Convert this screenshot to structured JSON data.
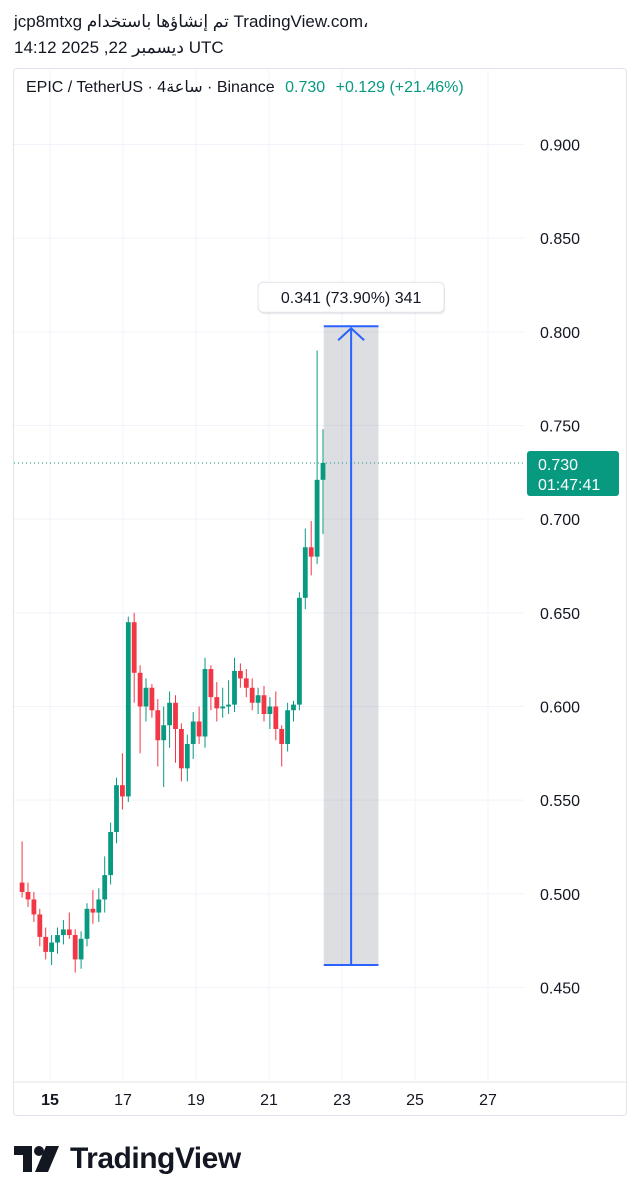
{
  "header": {
    "line1": "jcp8mtxg تم إنشاؤها باستخدام TradingView.com،",
    "line2": "14:12 2025 ,22 ديسمبر UTC"
  },
  "legend": {
    "symbol": "EPIC / TetherUS · 4ساعة · Binance",
    "last": "0.730",
    "change": "+0.129 (+21.46%)"
  },
  "price_tag": {
    "price": "0.730",
    "countdown": "01:47:41"
  },
  "measure": {
    "label": "0.341 (73.90%) 341"
  },
  "brand": {
    "name": "TradingView"
  },
  "colors": {
    "up": "#089981",
    "down": "#f23645",
    "measure": "#2962ff",
    "grid": "#f0f3fa"
  },
  "chart_data": {
    "type": "candlestick",
    "title": "EPIC / TetherUS · 4ساعة · Binance",
    "timeframe": "4h",
    "y_ticks": [
      "0.900",
      "0.850",
      "0.800",
      "0.750",
      "0.700",
      "0.650",
      "0.600",
      "0.550",
      "0.500",
      "0.450"
    ],
    "x_ticks": [
      {
        "label": "15",
        "day": 15,
        "bold": true
      },
      {
        "label": "17",
        "day": 17,
        "bold": false
      },
      {
        "label": "19",
        "day": 19,
        "bold": false
      },
      {
        "label": "21",
        "day": 21,
        "bold": false
      },
      {
        "label": "23",
        "day": 23,
        "bold": false
      },
      {
        "label": "25",
        "day": 25,
        "bold": false
      },
      {
        "label": "27",
        "day": 27,
        "bold": false
      }
    ],
    "y_range": [
      0.405,
      0.93
    ],
    "x_range_days": [
      14.0,
      28.0
    ],
    "last_price": 0.73,
    "candles": [
      [
        0.506,
        0.528,
        0.498,
        0.501
      ],
      [
        0.501,
        0.506,
        0.493,
        0.497
      ],
      [
        0.497,
        0.501,
        0.485,
        0.489
      ],
      [
        0.489,
        0.492,
        0.472,
        0.477
      ],
      [
        0.477,
        0.482,
        0.465,
        0.469
      ],
      [
        0.469,
        0.478,
        0.462,
        0.474
      ],
      [
        0.474,
        0.482,
        0.468,
        0.478
      ],
      [
        0.478,
        0.486,
        0.473,
        0.481
      ],
      [
        0.481,
        0.49,
        0.476,
        0.478
      ],
      [
        0.478,
        0.481,
        0.458,
        0.465
      ],
      [
        0.465,
        0.48,
        0.46,
        0.476
      ],
      [
        0.476,
        0.495,
        0.472,
        0.492
      ],
      [
        0.492,
        0.502,
        0.484,
        0.49
      ],
      [
        0.49,
        0.503,
        0.485,
        0.497
      ],
      [
        0.497,
        0.52,
        0.49,
        0.51
      ],
      [
        0.51,
        0.538,
        0.505,
        0.533
      ],
      [
        0.533,
        0.562,
        0.527,
        0.558
      ],
      [
        0.558,
        0.575,
        0.545,
        0.552
      ],
      [
        0.552,
        0.648,
        0.549,
        0.645
      ],
      [
        0.645,
        0.65,
        0.602,
        0.618
      ],
      [
        0.618,
        0.622,
        0.575,
        0.6
      ],
      [
        0.6,
        0.615,
        0.592,
        0.61
      ],
      [
        0.61,
        0.612,
        0.594,
        0.598
      ],
      [
        0.598,
        0.604,
        0.568,
        0.582
      ],
      [
        0.582,
        0.6,
        0.557,
        0.59
      ],
      [
        0.59,
        0.608,
        0.578,
        0.602
      ],
      [
        0.602,
        0.606,
        0.57,
        0.588
      ],
      [
        0.588,
        0.591,
        0.56,
        0.567
      ],
      [
        0.567,
        0.585,
        0.56,
        0.58
      ],
      [
        0.58,
        0.597,
        0.572,
        0.592
      ],
      [
        0.592,
        0.6,
        0.58,
        0.584
      ],
      [
        0.584,
        0.626,
        0.578,
        0.62
      ],
      [
        0.62,
        0.622,
        0.598,
        0.605
      ],
      [
        0.605,
        0.613,
        0.592,
        0.599
      ],
      [
        0.599,
        0.61,
        0.594,
        0.6
      ],
      [
        0.6,
        0.614,
        0.596,
        0.601
      ],
      [
        0.601,
        0.626,
        0.597,
        0.619
      ],
      [
        0.619,
        0.623,
        0.61,
        0.615
      ],
      [
        0.615,
        0.62,
        0.605,
        0.61
      ],
      [
        0.61,
        0.615,
        0.598,
        0.602
      ],
      [
        0.602,
        0.61,
        0.596,
        0.606
      ],
      [
        0.606,
        0.611,
        0.592,
        0.596
      ],
      [
        0.596,
        0.605,
        0.588,
        0.6
      ],
      [
        0.6,
        0.608,
        0.582,
        0.588
      ],
      [
        0.588,
        0.59,
        0.568,
        0.58
      ],
      [
        0.58,
        0.602,
        0.576,
        0.598
      ],
      [
        0.598,
        0.603,
        0.592,
        0.601
      ],
      [
        0.601,
        0.661,
        0.598,
        0.658
      ],
      [
        0.658,
        0.695,
        0.652,
        0.685
      ],
      [
        0.685,
        0.699,
        0.67,
        0.68
      ],
      [
        0.68,
        0.79,
        0.676,
        0.721
      ],
      [
        0.721,
        0.748,
        0.692,
        0.73
      ]
    ],
    "measurement": {
      "from": 0.462,
      "to": 0.803,
      "change": 0.341,
      "percent": 73.9,
      "start_day": 22.5,
      "end_day": 24.0
    }
  }
}
